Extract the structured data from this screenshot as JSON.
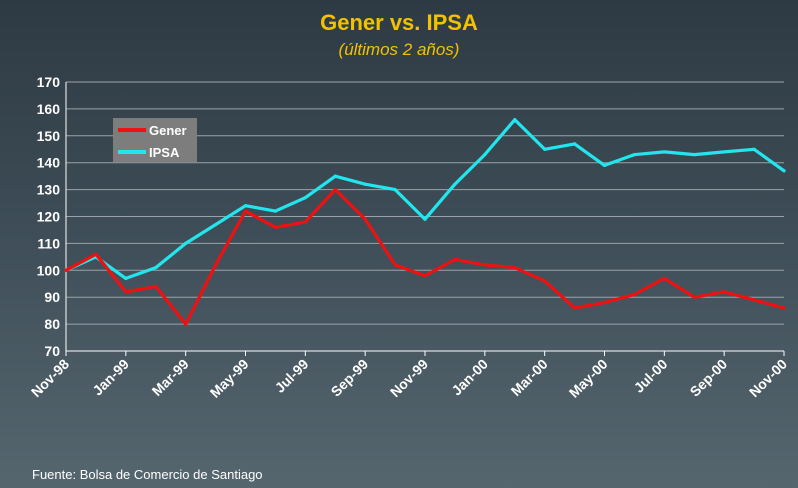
{
  "header": {
    "title": "Gener vs. IPSA",
    "subtitle": "(últimos 2 años)"
  },
  "footer": {
    "source": "Fuente: Bolsa de Comercio de Santiago"
  },
  "colors": {
    "title": "#f2c200",
    "gener": "#ee1111",
    "ipsa": "#22e6ee",
    "grid": "#9aa3aa",
    "legend_bg": "#7d7d7d"
  },
  "chart_data": {
    "type": "line",
    "title": "Gener vs. IPSA",
    "subtitle": "(últimos 2 años)",
    "xlabel": "",
    "ylabel": "",
    "ylim": [
      70,
      170
    ],
    "yticks": [
      70,
      80,
      90,
      100,
      110,
      120,
      130,
      140,
      150,
      160,
      170
    ],
    "xlim": [
      "Nov-98",
      "Nov-00"
    ],
    "xticks": [
      "Nov-98",
      "Jan-99",
      "Mar-99",
      "May-99",
      "Jul-99",
      "Sep-99",
      "Nov-99",
      "Jan-00",
      "Mar-00",
      "May-00",
      "Jul-00",
      "Sep-00",
      "Nov-00"
    ],
    "grid": true,
    "legend": "top-left",
    "x": [
      "Nov-98",
      "Dec-98",
      "Jan-99",
      "Feb-99",
      "Mar-99",
      "Apr-99",
      "May-99",
      "Jun-99",
      "Jul-99",
      "Aug-99",
      "Sep-99",
      "Oct-99",
      "Nov-99",
      "Dec-99",
      "Jan-00",
      "Feb-00",
      "Mar-00",
      "Apr-00",
      "May-00",
      "Jun-00",
      "Jul-00",
      "Aug-00",
      "Sep-00",
      "Oct-00",
      "Nov-00"
    ],
    "series": [
      {
        "name": "Gener",
        "color": "#ee1111",
        "values": [
          100,
          106,
          92,
          94,
          80,
          102,
          122,
          116,
          118,
          130,
          119,
          102,
          98,
          104,
          102,
          101,
          96,
          86,
          88,
          91,
          97,
          90,
          92,
          89,
          86
        ]
      },
      {
        "name": "IPSA",
        "color": "#22e6ee",
        "values": [
          100,
          105,
          97,
          101,
          110,
          117,
          124,
          122,
          127,
          135,
          132,
          130,
          119,
          132,
          143,
          156,
          145,
          147,
          139,
          143,
          144,
          143,
          144,
          145,
          137
        ]
      }
    ]
  }
}
